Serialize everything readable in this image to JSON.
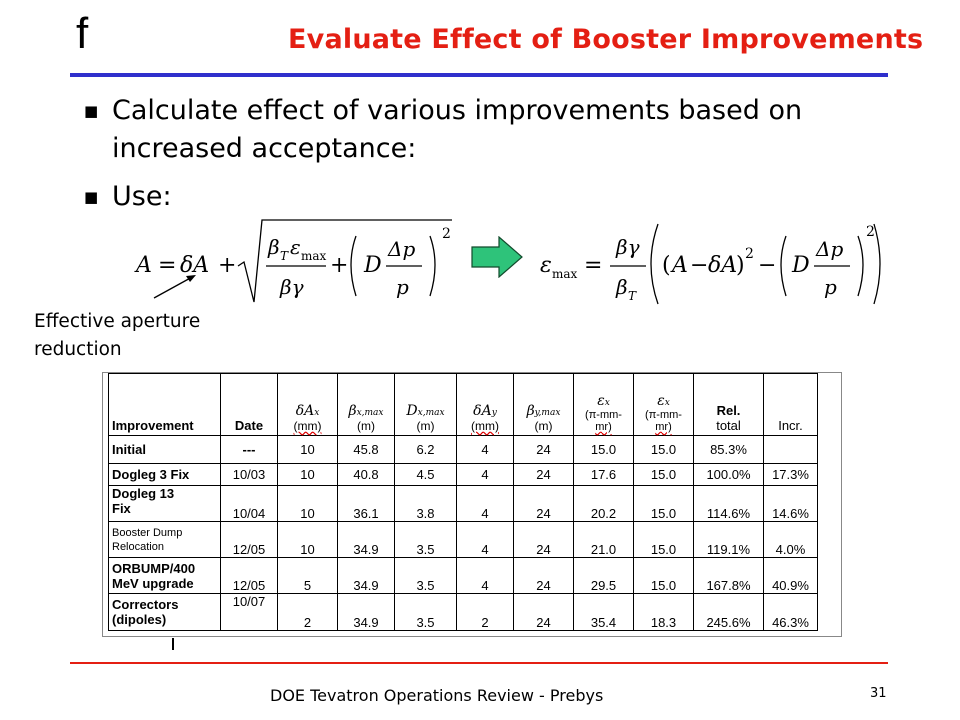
{
  "logo": "f",
  "title": "Evaluate Effect of Booster Improvements",
  "bullets": [
    "Calculate effect of various improvements based on increased acceptance:",
    "Use:"
  ],
  "caption_line1": "Effective aperture",
  "caption_line2": "reduction",
  "table": {
    "headers": {
      "improvement": "Improvement",
      "date": "Date",
      "dAx_unit": "(mm)",
      "betax_unit": "(m)",
      "dx_unit": "(m)",
      "dAy_unit": "(mm)",
      "betay_unit": "(m)",
      "ex_unit1": "(π-mm-",
      "ex_unit2": "mr)",
      "ey_unit1": "(π-mm-",
      "ey_unit2": "mr)",
      "rel1": "Rel.",
      "rel2": "total",
      "incr": "Incr."
    },
    "rows": [
      {
        "imp": "Initial",
        "date": "---",
        "dax": "10",
        "bx": "45.8",
        "dx": "6.2",
        "day": "4",
        "by": "24",
        "ex": "15.0",
        "ey": "15.0",
        "rel": "85.3%",
        "incr": ""
      },
      {
        "imp": "Dogleg 3 Fix",
        "date": "10/03",
        "dax": "10",
        "bx": "40.8",
        "dx": "4.5",
        "day": "4",
        "by": "24",
        "ex": "17.6",
        "ey": "15.0",
        "rel": "100.0%",
        "incr": "17.3%"
      },
      {
        "imp1": "Dogleg 13",
        "imp2": "Fix",
        "date": "10/04",
        "dax": "10",
        "bx": "36.1",
        "dx": "3.8",
        "day": "4",
        "by": "24",
        "ex": "20.2",
        "ey": "15.0",
        "rel": "114.6%",
        "incr": "14.6%"
      },
      {
        "imp1": "Booster Dump",
        "imp2": "Relocation",
        "date": "12/05",
        "dax": "10",
        "bx": "34.9",
        "dx": "3.5",
        "day": "4",
        "by": "24",
        "ex": "21.0",
        "ey": "15.0",
        "rel": "119.1%",
        "incr": "4.0%"
      },
      {
        "imp1": "ORBUMP/400",
        "imp2": "MeV upgrade",
        "date": "12/05",
        "dax": "5",
        "bx": "34.9",
        "dx": "3.5",
        "day": "4",
        "by": "24",
        "ex": "29.5",
        "ey": "15.0",
        "rel": "167.8%",
        "incr": "40.9%"
      },
      {
        "imp1": "Correctors",
        "imp2": "(dipoles)",
        "date": "10/07",
        "dax": "2",
        "bx": "34.9",
        "dx": "3.5",
        "day": "2",
        "by": "24",
        "ex": "35.4",
        "ey": "18.3",
        "rel": "245.6%",
        "incr": "46.3%"
      }
    ]
  },
  "footer": "DOE Tevatron Operations Review - Prebys",
  "page_number": "31",
  "colors": {
    "title": "#e41f13",
    "top_rule": "#2f2fcc",
    "bottom_rule": "#e41f13",
    "arrow": "#2ec37a"
  }
}
